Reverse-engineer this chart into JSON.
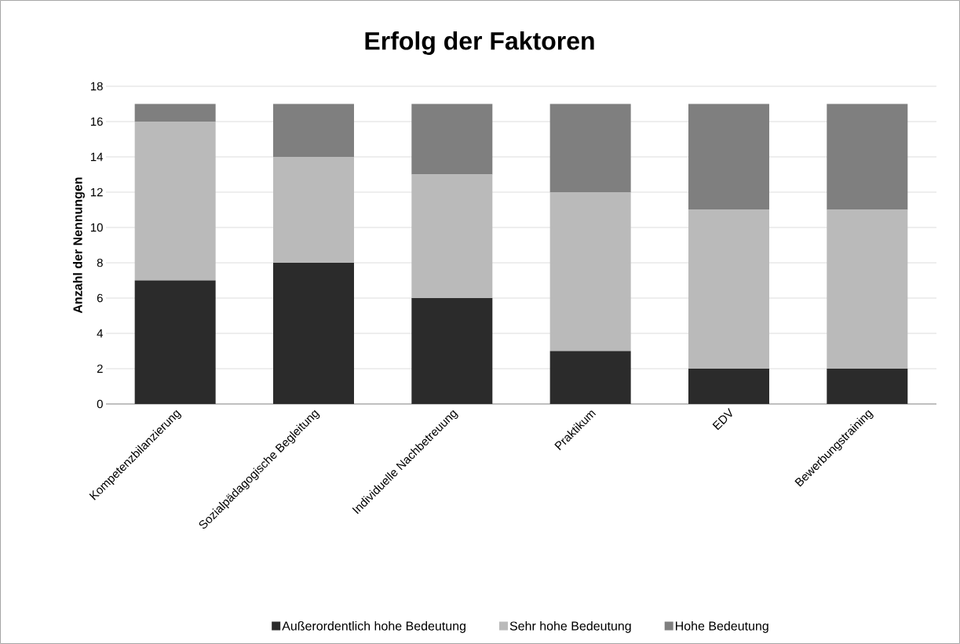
{
  "chart_data": {
    "type": "bar",
    "title": "Erfolg der Faktoren",
    "ylabel": "Anzahl der Nennungen",
    "stacked": true,
    "categories": [
      "Kompetenzbilanzierung",
      "Sozialpädagogische Begleitung",
      "Individuelle Nachbetreuung",
      "Praktikum",
      "EDV",
      "Bewerbungstraining"
    ],
    "series": [
      {
        "name": "Außerordentlich hohe Bedeutung",
        "color": "#2b2b2b",
        "values": [
          7,
          8,
          6,
          3,
          2,
          2
        ]
      },
      {
        "name": "Sehr hohe Bedeutung",
        "color": "#bababa",
        "values": [
          9,
          6,
          7,
          9,
          9,
          9
        ]
      },
      {
        "name": "Hohe Bedeutung",
        "color": "#7f7f7f",
        "values": [
          1,
          3,
          4,
          5,
          6,
          6
        ]
      }
    ],
    "ylim": [
      0,
      18
    ],
    "yticks": [
      0,
      2,
      4,
      6,
      8,
      10,
      12,
      14,
      16,
      18
    ],
    "grid": "y",
    "legend": "bottom"
  }
}
